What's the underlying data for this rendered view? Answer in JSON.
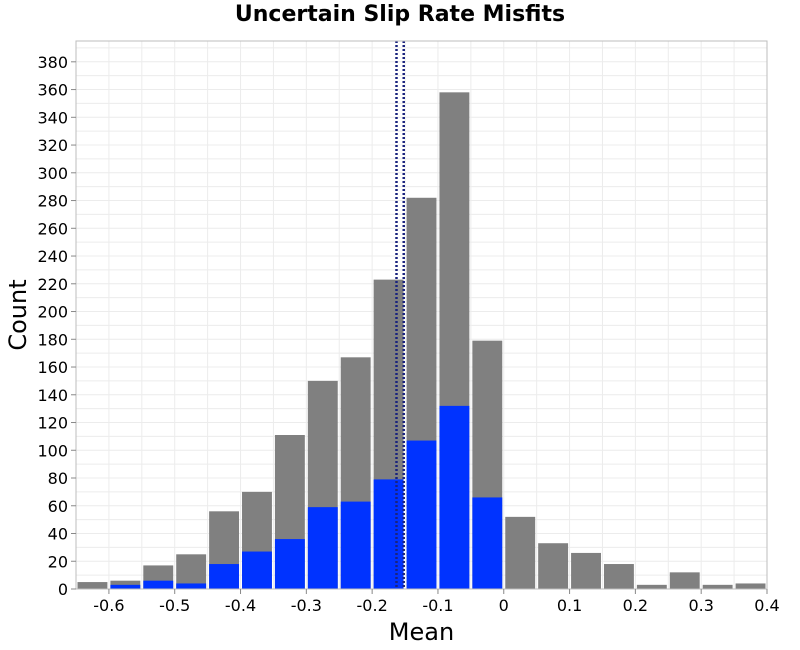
{
  "chart_data": {
    "type": "bar",
    "title": "Uncertain Slip Rate Misfits",
    "xlabel": "Mean",
    "ylabel": "Count",
    "xlim": [
      -0.65,
      0.4
    ],
    "ylim": [
      0,
      395
    ],
    "x_ticks": [
      -0.6,
      -0.5,
      -0.4,
      -0.3,
      -0.2,
      -0.1,
      0,
      0.1,
      0.2,
      0.3,
      0.4
    ],
    "y_ticks": [
      0,
      20,
      40,
      60,
      80,
      100,
      120,
      140,
      160,
      180,
      200,
      220,
      240,
      260,
      280,
      300,
      320,
      340,
      360,
      380
    ],
    "bin_centers": [
      -0.625,
      -0.575,
      -0.525,
      -0.475,
      -0.425,
      -0.375,
      -0.325,
      -0.275,
      -0.225,
      -0.175,
      -0.125,
      -0.075,
      -0.025,
      0.025,
      0.075,
      0.125,
      0.175,
      0.225,
      0.275,
      0.325,
      0.375
    ],
    "bin_width": 0.05,
    "series": [
      {
        "color": "#808080",
        "values": [
          5,
          6,
          17,
          25,
          56,
          70,
          111,
          150,
          167,
          223,
          282,
          358,
          179,
          52,
          33,
          26,
          18,
          3,
          12,
          3,
          4
        ]
      },
      {
        "color": "#0033ff",
        "values": [
          0,
          3,
          6,
          4,
          18,
          27,
          36,
          59,
          63,
          79,
          107,
          132,
          66,
          0,
          0,
          0,
          0,
          0,
          0,
          0,
          0
        ]
      }
    ],
    "vlines": [
      {
        "x": -0.163,
        "color": "#1a237e",
        "style": "dotted"
      },
      {
        "x": -0.152,
        "color": "#1a237e",
        "style": "dotted"
      }
    ],
    "grid": true
  }
}
